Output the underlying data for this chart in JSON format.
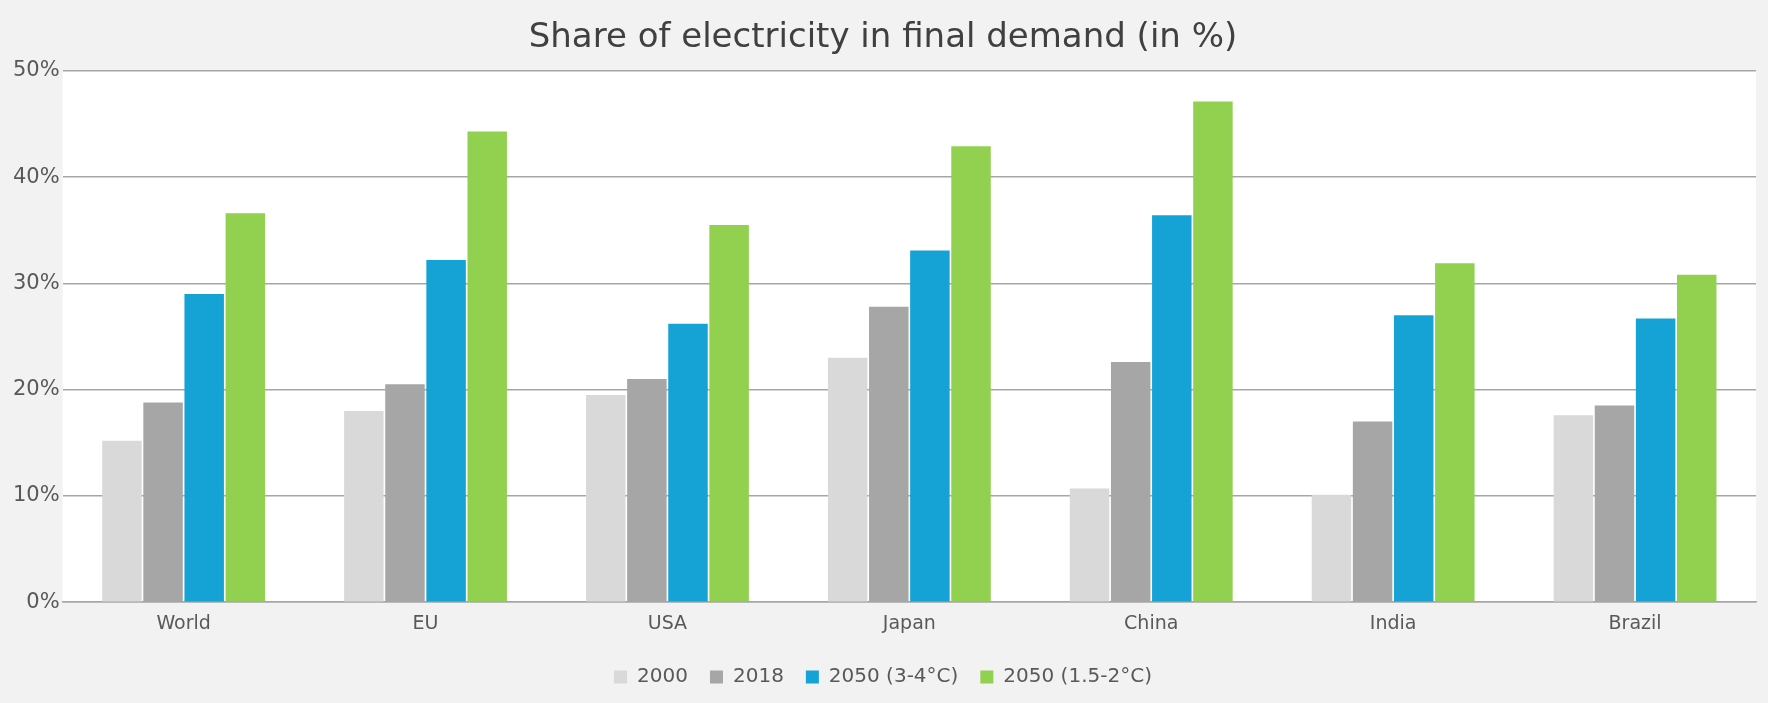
{
  "chart_data": {
    "type": "bar",
    "title": "Share of electricity in final demand (in %)",
    "categories": [
      "World",
      "EU",
      "USA",
      "Japan",
      "China",
      "India",
      "Brazil"
    ],
    "series": [
      {
        "name": "2000",
        "color": "#d9d9d9",
        "values": [
          15.2,
          18.0,
          19.5,
          23.0,
          10.7,
          10.1,
          17.6
        ]
      },
      {
        "name": "2018",
        "color": "#a6a6a6",
        "values": [
          18.8,
          20.5,
          21.0,
          27.8,
          22.6,
          17.0,
          18.5
        ]
      },
      {
        "name": "2050 (3-4°C)",
        "color": "#14a3d4",
        "values": [
          29.0,
          32.2,
          26.2,
          33.1,
          36.4,
          27.0,
          26.7
        ]
      },
      {
        "name": "2050 (1.5-2°C)",
        "color": "#92d050",
        "values": [
          36.6,
          44.3,
          35.5,
          42.9,
          47.1,
          31.9,
          30.8
        ]
      }
    ],
    "ylim": [
      0,
      50
    ],
    "yticks": [
      {
        "value": 0,
        "label": "0%"
      },
      {
        "value": 10,
        "label": "10%"
      },
      {
        "value": 20,
        "label": "20%"
      },
      {
        "value": 30,
        "label": "30%"
      },
      {
        "value": 40,
        "label": "40%"
      },
      {
        "value": 50,
        "label": "50%"
      }
    ],
    "grid": "y",
    "legend": "bottom"
  }
}
